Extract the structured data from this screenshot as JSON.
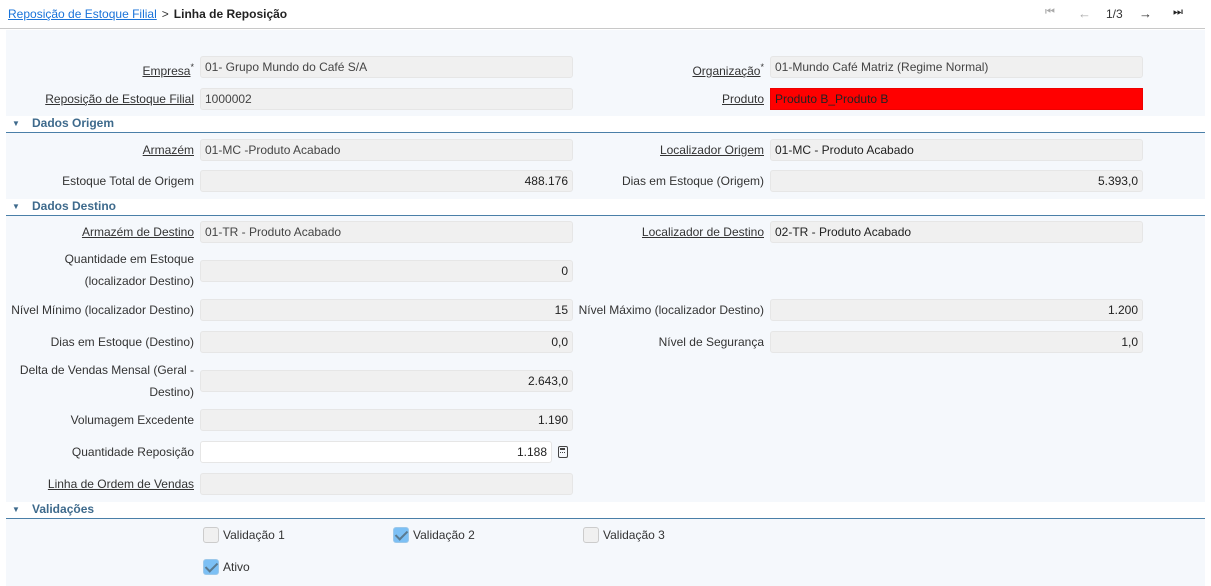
{
  "breadcrumb": {
    "parent": "Reposição de Estoque Filial",
    "separator": ">",
    "current": "Linha de Reposição"
  },
  "pager": {
    "first_icon": "first-page-icon",
    "prev_icon": "arrow-left-icon",
    "position": "1/3",
    "next_icon": "arrow-right-icon",
    "last_icon": "last-page-icon"
  },
  "fields": {
    "empresa": {
      "label": "Empresa",
      "value": "01- Grupo Mundo do Café S/A"
    },
    "organizacao": {
      "label": "Organização",
      "value": "01-Mundo Café Matriz (Regime Normal)"
    },
    "reposicao": {
      "label": "Reposição de Estoque Filial",
      "value": "1000002"
    },
    "produto": {
      "label": "Produto",
      "value": "Produto B_Produto B",
      "highlight": "#ff0000"
    },
    "armazem": {
      "label": "Armazém",
      "value": "01-MC -Produto Acabado"
    },
    "localizador_origem": {
      "label": "Localizador Origem",
      "value": "01-MC - Produto Acabado"
    },
    "estoque_total": {
      "label": "Estoque Total de Origem",
      "value": "488.176"
    },
    "dias_origem": {
      "label": "Dias em Estoque (Origem)",
      "value": "5.393,0"
    },
    "armazem_destino": {
      "label": "Armazém de Destino",
      "value": "01-TR - Produto Acabado"
    },
    "localizador_destino": {
      "label": "Localizador de Destino",
      "value": "02-TR - Produto Acabado"
    },
    "qtd_estoque": {
      "label_1": "Quantidade em Estoque",
      "label_2": "(localizador Destino)",
      "value": "0"
    },
    "nivel_minimo": {
      "label": "Nível Mínimo (localizador Destino)",
      "value": "15"
    },
    "nivel_maximo": {
      "label": "Nível Máximo (localizador Destino)",
      "value": "1.200"
    },
    "dias_destino": {
      "label": "Dias em Estoque (Destino)",
      "value": "0,0"
    },
    "nivel_seguranca": {
      "label": "Nível de Segurança",
      "value": "1,0"
    },
    "delta_vendas": {
      "label_1": "Delta de Vendas Mensal (Geral -",
      "label_2": "Destino)",
      "value": "2.643,0"
    },
    "volumagem": {
      "label": "Volumagem Excedente",
      "value": "1.190"
    },
    "qtd_reposicao": {
      "label": "Quantidade Reposição",
      "value": "1.188"
    },
    "linha_ordem": {
      "label": "Linha de Ordem de Vendas",
      "value": ""
    }
  },
  "sections": {
    "origem": "Dados Origem",
    "destino": "Dados Destino",
    "validacoes": "Validações"
  },
  "checkboxes": [
    {
      "label": "Validação 1",
      "checked": false
    },
    {
      "label": "Validação 2",
      "checked": true
    },
    {
      "label": "Validação 3",
      "checked": false
    },
    {
      "label": "Ativo",
      "checked": true
    }
  ],
  "required_mark": "*"
}
